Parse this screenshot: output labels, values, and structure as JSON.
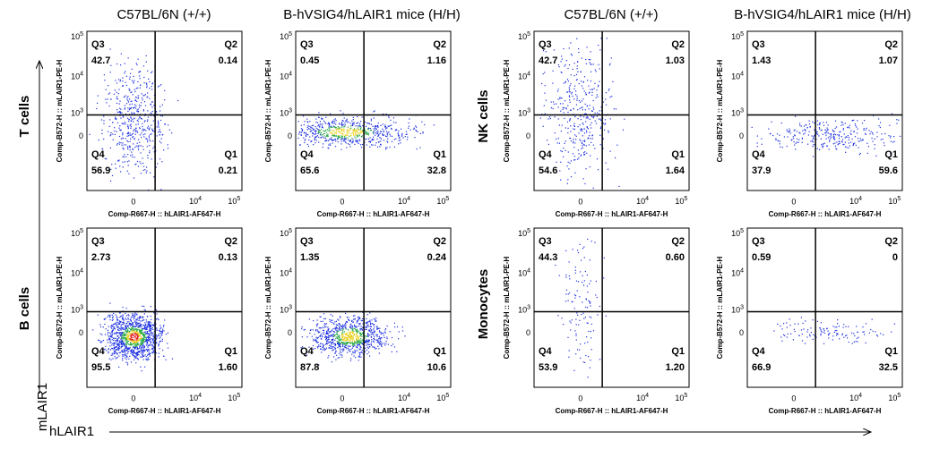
{
  "columns": [
    "C57BL/6N (+/+)",
    "B-hVSIG4/hLAIR1 mice (H/H)",
    "C57BL/6N (+/+)",
    "B-hVSIG4/hLAIR1 mice (H/H)"
  ],
  "rows": [
    "T cells",
    "B cells",
    "NK cells",
    "Monocytes"
  ],
  "quadrant_names": [
    "Q1",
    "Q2",
    "Q3",
    "Q4"
  ],
  "axes": {
    "y_label": "Comp-B572-H :: mLAIR1-PE-H",
    "x_label": "Comp-R667-H :: hLAIR1-AF647-H",
    "y_ticks": [
      {
        "base": "10",
        "exp": "5"
      },
      {
        "base": "10",
        "exp": "4"
      },
      {
        "base": "10",
        "exp": "3"
      },
      "0"
    ],
    "x_ticks": [
      "0",
      {
        "base": "10",
        "exp": "4"
      },
      {
        "base": "10",
        "exp": "5"
      }
    ]
  },
  "global_axes": {
    "y": "mLAIR1",
    "x": "hLAIR1"
  },
  "panels": [
    {
      "Q1": "0.21",
      "Q2": "0.14",
      "Q3": "42.7",
      "Q4": "56.9"
    },
    {
      "Q1": "32.8",
      "Q2": "1.16",
      "Q3": "0.45",
      "Q4": "65.6"
    },
    {
      "Q1": "1.64",
      "Q2": "1.03",
      "Q3": "42.7",
      "Q4": "54.6"
    },
    {
      "Q1": "59.6",
      "Q2": "1.07",
      "Q3": "1.43",
      "Q4": "37.9"
    },
    {
      "Q1": "1.60",
      "Q2": "0.13",
      "Q3": "2.73",
      "Q4": "95.5"
    },
    {
      "Q1": "10.6",
      "Q2": "0.24",
      "Q3": "1.35",
      "Q4": "87.8"
    },
    {
      "Q1": "1.20",
      "Q2": "0.60",
      "Q3": "44.3",
      "Q4": "53.9"
    },
    {
      "Q1": "32.5",
      "Q2": "0",
      "Q3": "0.59",
      "Q4": "66.9"
    }
  ]
}
